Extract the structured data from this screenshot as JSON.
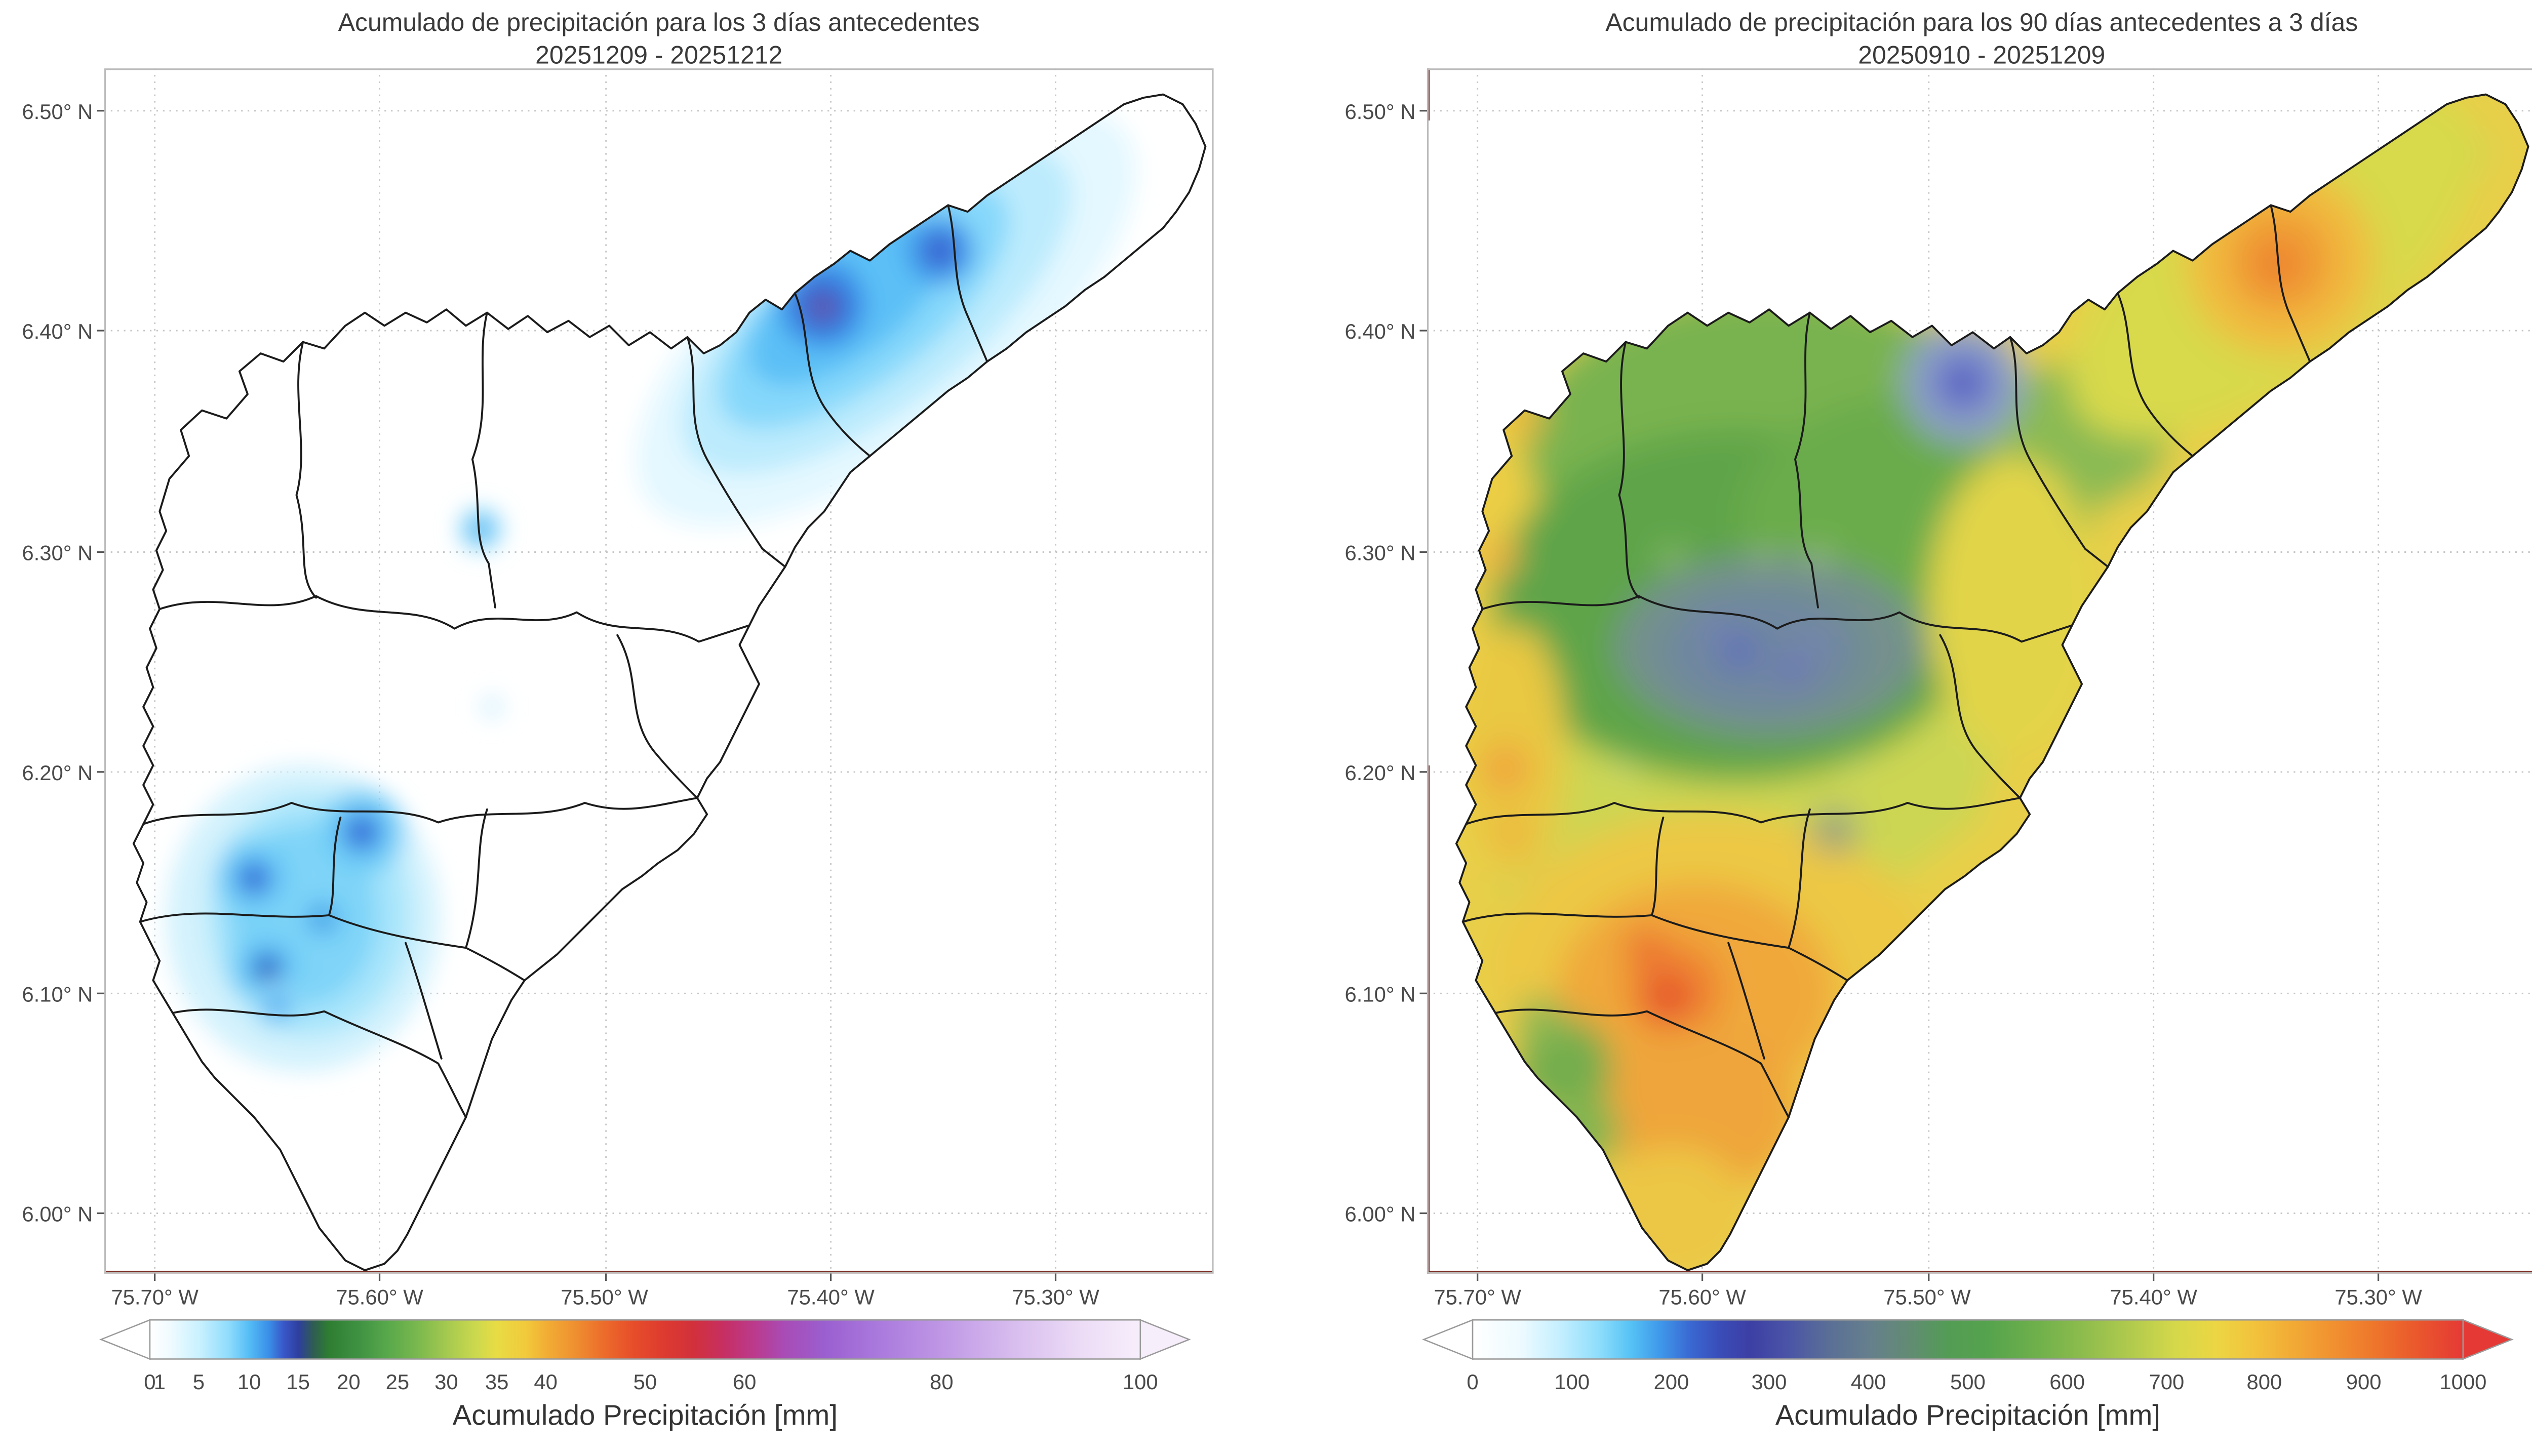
{
  "panels": [
    {
      "title_line1": "Acumulado de precipitación para los 3 días antecedentes",
      "title_line2": "20251209 - 20251212",
      "yticks": [
        "6.50° N",
        "6.40° N",
        "6.30° N",
        "6.20° N",
        "6.10° N",
        "6.00° N"
      ],
      "xticks": [
        "75.70° W",
        "75.60° W",
        "75.50° W",
        "75.40° W",
        "75.30° W"
      ],
      "colorbar": {
        "label": "Acumulado Precipitación [mm]",
        "ticks": [
          "0",
          "1",
          "5",
          "10",
          "15",
          "20",
          "25",
          "30",
          "35",
          "40",
          "50",
          "60",
          "80",
          "100"
        ],
        "min": 0,
        "max": 100,
        "under_color": "#ffffff",
        "over_color": "#f7eefb",
        "stops": [
          [
            0,
            "#ffffff"
          ],
          [
            2,
            "#f0fbff"
          ],
          [
            5,
            "#c9f1ff"
          ],
          [
            8,
            "#8edcfc"
          ],
          [
            10,
            "#55bdf5"
          ],
          [
            12,
            "#3a8fe8"
          ],
          [
            13.5,
            "#3957c9"
          ],
          [
            15,
            "#2e3f9e"
          ],
          [
            16.5,
            "#2f5c52"
          ],
          [
            18,
            "#2e7d32"
          ],
          [
            21,
            "#3f9142"
          ],
          [
            24,
            "#58a84b"
          ],
          [
            27,
            "#7ab84e"
          ],
          [
            30,
            "#a5c94f"
          ],
          [
            33,
            "#cdd94e"
          ],
          [
            35,
            "#e8dc44"
          ],
          [
            38,
            "#f2c93b"
          ],
          [
            40,
            "#f2ae35"
          ],
          [
            43,
            "#ef8f30"
          ],
          [
            46,
            "#ec6a2b"
          ],
          [
            49,
            "#e64c2a"
          ],
          [
            52,
            "#dd3a30"
          ],
          [
            55,
            "#d1303c"
          ],
          [
            58,
            "#c62f63"
          ],
          [
            61,
            "#bb3a8c"
          ],
          [
            64,
            "#a94bb5"
          ],
          [
            68,
            "#9b5ecf"
          ],
          [
            73,
            "#a877dc"
          ],
          [
            80,
            "#bf97e5"
          ],
          [
            87,
            "#d7bcee"
          ],
          [
            94,
            "#ecdcf6"
          ],
          [
            100,
            "#f7eefb"
          ]
        ]
      }
    },
    {
      "title_line1": "Acumulado de precipitación para los 90 días antecedentes a 3 días",
      "title_line2": "20250910 - 20251209",
      "yticks": [
        "6.50° N",
        "6.40° N",
        "6.30° N",
        "6.20° N",
        "6.10° N",
        "6.00° N"
      ],
      "xticks": [
        "75.70° W",
        "75.60° W",
        "75.50° W",
        "75.40° W",
        "75.30° W"
      ],
      "colorbar": {
        "label": "Acumulado Precipitación [mm]",
        "ticks": [
          "0",
          "100",
          "200",
          "300",
          "400",
          "500",
          "600",
          "700",
          "800",
          "900",
          "1000"
        ],
        "min": 0,
        "max": 1000,
        "under_color": "#ffffff",
        "over_color": "#e53935",
        "stops": [
          [
            0,
            "#ffffff"
          ],
          [
            5,
            "#ecfaff"
          ],
          [
            9,
            "#c2eeff"
          ],
          [
            13,
            "#8adcfb"
          ],
          [
            16,
            "#55c2f5"
          ],
          [
            19,
            "#3f97ea"
          ],
          [
            22,
            "#3a68d2"
          ],
          [
            25,
            "#3a4cb8"
          ],
          [
            28,
            "#3c3fa4"
          ],
          [
            32,
            "#4b55a6"
          ],
          [
            36,
            "#5a6f96"
          ],
          [
            40,
            "#667f8d"
          ],
          [
            44,
            "#628b74"
          ],
          [
            48,
            "#539c55"
          ],
          [
            52,
            "#55a34d"
          ],
          [
            57,
            "#6fb04b"
          ],
          [
            62,
            "#90bd4d"
          ],
          [
            67,
            "#b5cc4d"
          ],
          [
            71,
            "#d5d84a"
          ],
          [
            75,
            "#ecd643"
          ],
          [
            79,
            "#f2c23c"
          ],
          [
            83,
            "#f2a935"
          ],
          [
            87,
            "#f19030"
          ],
          [
            91,
            "#ee762c"
          ],
          [
            95,
            "#ea5a2c"
          ],
          [
            100,
            "#e53935"
          ]
        ]
      }
    }
  ],
  "chart_data": [
    {
      "type": "heatmap",
      "title": "Acumulado de precipitación para los 3 días antecedentes",
      "subtitle": "20251209 - 20251212",
      "x_axis": {
        "tick_labels": [
          "75.70° W",
          "75.60° W",
          "75.50° W",
          "75.40° W",
          "75.30° W"
        ],
        "range_deg_west": [
          75.72,
          75.23
        ]
      },
      "y_axis": {
        "tick_labels": [
          "6.50° N",
          "6.40° N",
          "6.30° N",
          "6.20° N",
          "6.10° N",
          "6.00° N"
        ],
        "range_deg_north": [
          5.97,
          6.52
        ]
      },
      "colorbar": {
        "label": "Acumulado Precipitación [mm]",
        "units": "mm",
        "tick_values": [
          0,
          1,
          5,
          10,
          15,
          20,
          25,
          30,
          35,
          40,
          50,
          60,
          80,
          100
        ],
        "range": [
          0,
          100
        ],
        "extend": "both"
      },
      "grid": true,
      "background_value_mm": 0,
      "features": [
        {
          "name": "maximo-noreste",
          "lon_deg_w": 75.38,
          "lat_deg_n": 6.42,
          "value_mm": 20
        },
        {
          "name": "secundario-noreste",
          "lon_deg_w": 75.33,
          "lat_deg_n": 6.44,
          "value_mm": 15
        },
        {
          "name": "halo-noreste",
          "lon_deg_w": 75.37,
          "lat_deg_n": 6.42,
          "value_mm": 5
        },
        {
          "name": "punto-centro",
          "lon_deg_w": 75.56,
          "lat_deg_n": 6.31,
          "value_mm": 8
        },
        {
          "name": "cumulo-suroeste-1",
          "lon_deg_w": 75.61,
          "lat_deg_n": 6.175,
          "value_mm": 15
        },
        {
          "name": "cumulo-suroeste-2",
          "lon_deg_w": 75.655,
          "lat_deg_n": 6.155,
          "value_mm": 15
        },
        {
          "name": "cumulo-suroeste-3",
          "lon_deg_w": 75.65,
          "lat_deg_n": 6.115,
          "value_mm": 18
        },
        {
          "name": "cumulo-suroeste-4",
          "lon_deg_w": 75.625,
          "lat_deg_n": 6.135,
          "value_mm": 10
        }
      ]
    },
    {
      "type": "heatmap",
      "title": "Acumulado de precipitación para los 90 días antecedentes a 3 días",
      "subtitle": "20250910 - 20251209",
      "x_axis": {
        "tick_labels": [
          "75.70° W",
          "75.60° W",
          "75.50° W",
          "75.40° W",
          "75.30° W"
        ],
        "range_deg_west": [
          75.72,
          75.23
        ]
      },
      "y_axis": {
        "tick_labels": [
          "6.50° N",
          "6.40° N",
          "6.30° N",
          "6.20° N",
          "6.10° N",
          "6.00° N"
        ],
        "range_deg_north": [
          5.97,
          6.52
        ]
      },
      "colorbar": {
        "label": "Acumulado Precipitación [mm]",
        "units": "mm",
        "tick_values": [
          0,
          100,
          200,
          300,
          400,
          500,
          600,
          700,
          800,
          900,
          1000
        ],
        "range": [
          0,
          1000
        ],
        "extend": "both"
      },
      "grid": true,
      "background_value_mm": 650,
      "features": [
        {
          "name": "zona-verde-norte-centro",
          "lon_deg_w": 75.57,
          "lat_deg_n": 6.3,
          "value_mm": 550
        },
        {
          "name": "zona-gris-azulada-centro",
          "lon_deg_w": 75.575,
          "lat_deg_n": 6.26,
          "value_mm": 400
        },
        {
          "name": "minimo-centro",
          "lon_deg_w": 75.585,
          "lat_deg_n": 6.255,
          "value_mm": 280
        },
        {
          "name": "minimo-noreste",
          "lon_deg_w": 75.49,
          "lat_deg_n": 6.38,
          "value_mm": 300
        },
        {
          "name": "maximo-sur",
          "lon_deg_w": 75.615,
          "lat_deg_n": 6.105,
          "value_mm": 950
        },
        {
          "name": "zona-naranja-sur",
          "lon_deg_w": 75.61,
          "lat_deg_n": 6.1,
          "value_mm": 850
        },
        {
          "name": "naranja-extremo-noreste",
          "lon_deg_w": 75.29,
          "lat_deg_n": 6.43,
          "value_mm": 800
        },
        {
          "name": "borde-amarillo-oeste",
          "lon_deg_w": 75.69,
          "lat_deg_n": 6.3,
          "value_mm": 700
        },
        {
          "name": "verde-suroeste",
          "lon_deg_w": 75.665,
          "lat_deg_n": 6.09,
          "value_mm": 550
        }
      ]
    }
  ]
}
